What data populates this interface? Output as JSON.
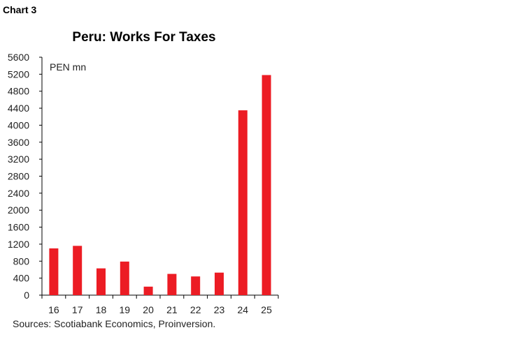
{
  "header": {
    "chart_label": "Chart 3"
  },
  "footer": {
    "source": "Sources: Scotiabank Economics, Proinversion."
  },
  "colors": {
    "bar": "#ec1c24",
    "axis": "#000000"
  },
  "chart_data": {
    "type": "bar",
    "title": "Peru: Works For Taxes",
    "ylabel": "PEN mn",
    "xlabel": "",
    "categories": [
      "16",
      "17",
      "18",
      "19",
      "20",
      "21",
      "22",
      "23",
      "24",
      "25"
    ],
    "values": [
      1100,
      1160,
      630,
      790,
      200,
      500,
      440,
      530,
      4350,
      5180
    ],
    "ylim": [
      0,
      5600
    ],
    "yticks": [
      0,
      400,
      800,
      1200,
      1600,
      2000,
      2400,
      2800,
      3200,
      3600,
      4000,
      4400,
      4800,
      5200,
      5600
    ],
    "grid": false
  }
}
